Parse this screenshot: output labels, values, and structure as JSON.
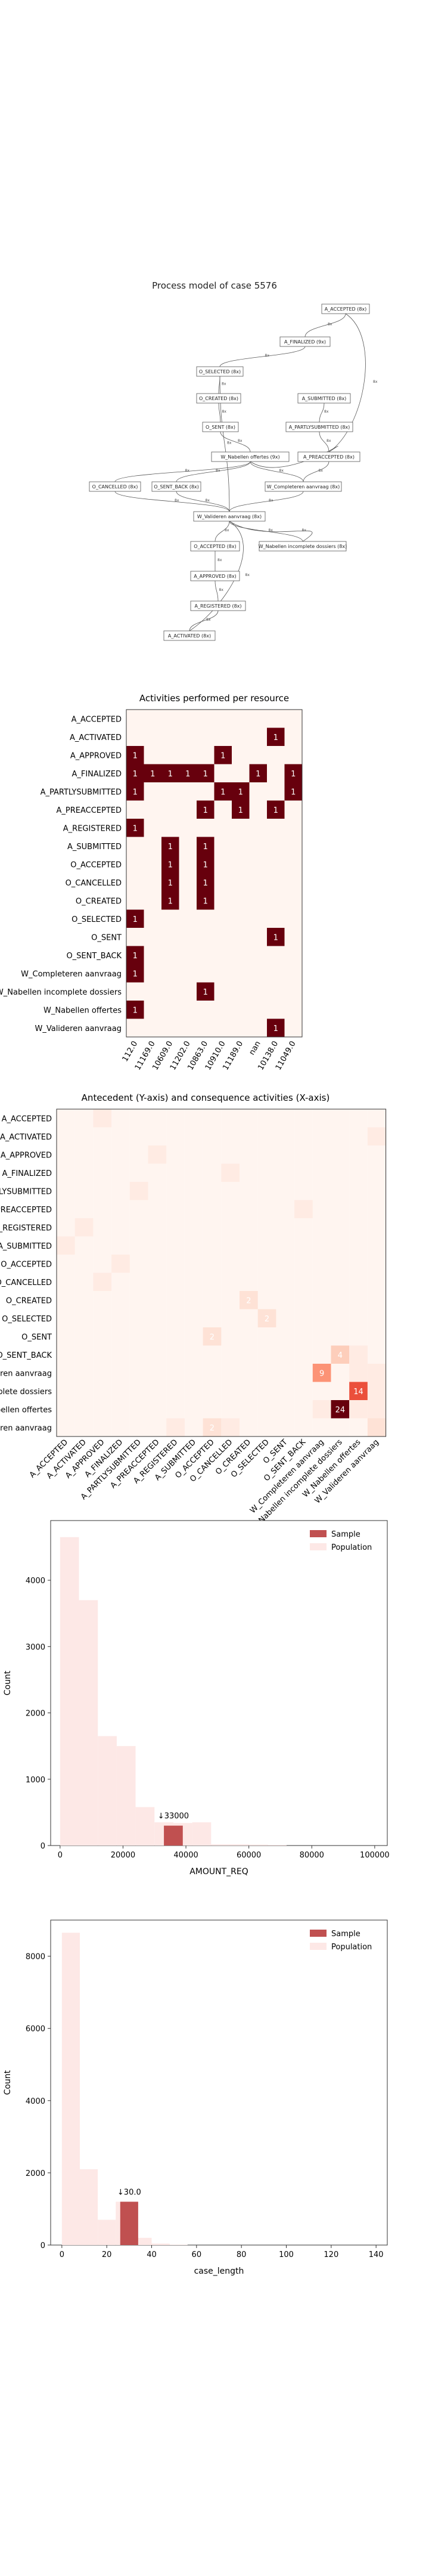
{
  "process_model": {
    "title": "Process model of case 5576",
    "nodes": [
      "A_ACCEPTED (8x)",
      "A_FINALIZED (9x)",
      "O_SELECTED (8x)",
      "O_CREATED (8x)",
      "A_SUBMITTED (8x)",
      "O_SENT (8x)",
      "A_PARTLYSUBMITTED (8x)",
      "W_Nabellen offertes (9x)",
      "A_PREACCEPTED (8x)",
      "O_CANCELLED (8x)",
      "O_SENT_BACK (8x)",
      "W_Completeren aanvraag (8x)",
      "W_Valideren aanvraag (8x)",
      "O_ACCEPTED (8x)",
      "W_Nabellen incomplete dossiers (8x)",
      "A_APPROVED (8x)",
      "A_REGISTERED (8x)",
      "A_ACTIVATED (8x)"
    ],
    "edge_labels": [
      "8x",
      "8x",
      "8x",
      "8x",
      "8x",
      "8x",
      "8x",
      "8x",
      "8x",
      "8x",
      "8x",
      "8x",
      "8x",
      "8x",
      "8x",
      "8x",
      "8x",
      "8x",
      "8x",
      "8x",
      "8x",
      "8x",
      "8x",
      "8x"
    ]
  },
  "chart_data": [
    {
      "type": "heatmap",
      "title": "Activities performed per resource",
      "rows": [
        "A_ACCEPTED",
        "A_ACTIVATED",
        "A_APPROVED",
        "A_FINALIZED",
        "A_PARTLYSUBMITTED",
        "A_PREACCEPTED",
        "A_REGISTERED",
        "A_SUBMITTED",
        "O_ACCEPTED",
        "O_CANCELLED",
        "O_CREATED",
        "O_SELECTED",
        "O_SENT",
        "O_SENT_BACK",
        "W_Completeren aanvraag",
        "W_Nabellen incomplete dossiers",
        "W_Nabellen offertes",
        "W_Valideren aanvraag"
      ],
      "cols": [
        "112.0",
        "11169.0",
        "10609.0",
        "11202.0",
        "10863.0",
        "10910.0",
        "11189.0",
        "nan",
        "10138.0",
        "11049.0"
      ],
      "cells": [
        [
          3,
          4,
          1
        ],
        [
          1,
          8,
          1
        ],
        [
          2,
          0,
          1
        ],
        [
          2,
          5,
          1
        ],
        [
          3,
          0,
          1
        ],
        [
          3,
          1,
          1
        ],
        [
          3,
          2,
          1
        ],
        [
          3,
          3,
          1
        ],
        [
          3,
          4,
          1
        ],
        [
          3,
          7,
          1
        ],
        [
          3,
          9,
          1
        ],
        [
          4,
          0,
          1
        ],
        [
          4,
          6,
          1
        ],
        [
          4,
          5,
          1
        ],
        [
          4,
          9,
          1
        ],
        [
          5,
          4,
          1
        ],
        [
          5,
          6,
          1
        ],
        [
          5,
          8,
          1
        ],
        [
          6,
          0,
          1
        ],
        [
          7,
          2,
          1
        ],
        [
          7,
          4,
          1
        ],
        [
          8,
          2,
          1
        ],
        [
          8,
          4,
          1
        ],
        [
          9,
          2,
          1
        ],
        [
          9,
          4,
          1
        ],
        [
          10,
          2,
          1
        ],
        [
          10,
          4,
          1
        ],
        [
          11,
          0,
          1
        ],
        [
          12,
          8,
          1
        ],
        [
          13,
          0,
          1
        ],
        [
          14,
          0,
          1
        ],
        [
          15,
          4,
          1
        ],
        [
          16,
          0,
          1
        ],
        [
          17,
          8,
          1
        ]
      ]
    },
    {
      "type": "heatmap",
      "title": "Antecedent (Y-axis) and consequence activities (X-axis)",
      "labels": [
        "A_ACCEPTED",
        "A_ACTIVATED",
        "A_APPROVED",
        "A_FINALIZED",
        "A_PARTLYSUBMITTED",
        "A_PREACCEPTED",
        "A_REGISTERED",
        "A_SUBMITTED",
        "O_ACCEPTED",
        "O_CANCELLED",
        "O_CREATED",
        "O_SELECTED",
        "O_SENT",
        "O_SENT_BACK",
        "W_Completeren aanvraag",
        "W_Nabellen incomplete dossiers",
        "W_Nabellen offertes",
        "W_Valideren aanvraag"
      ],
      "cells": [
        [
          0,
          2,
          1
        ],
        [
          1,
          17,
          1
        ],
        [
          2,
          5,
          1
        ],
        [
          3,
          9,
          1
        ],
        [
          4,
          4,
          1
        ],
        [
          5,
          13,
          1
        ],
        [
          6,
          1,
          1
        ],
        [
          7,
          0,
          1
        ],
        [
          8,
          3,
          1
        ],
        [
          9,
          2,
          1
        ],
        [
          10,
          10,
          2
        ],
        [
          11,
          11,
          2
        ],
        [
          12,
          8,
          2
        ],
        [
          13,
          15,
          4
        ],
        [
          14,
          16,
          1
        ],
        [
          15,
          16,
          1
        ],
        [
          16,
          17,
          1
        ],
        [
          14,
          14,
          9
        ],
        [
          15,
          16,
          14
        ],
        [
          16,
          15,
          24
        ],
        [
          16,
          14,
          1
        ],
        [
          16,
          16,
          1
        ],
        [
          17,
          6,
          1
        ],
        [
          17,
          8,
          2
        ],
        [
          17,
          9,
          1
        ],
        [
          13,
          16,
          1
        ],
        [
          14,
          17,
          1
        ],
        [
          15,
          17,
          1
        ],
        [
          17,
          17,
          2
        ]
      ],
      "printed_values": [
        {
          "row": 14,
          "col": 14,
          "label": "9"
        },
        {
          "row": 15,
          "col": 16,
          "label": "14"
        },
        {
          "row": 16,
          "col": 15,
          "label": "24"
        },
        {
          "row": 10,
          "col": 10,
          "label": "2"
        },
        {
          "row": 11,
          "col": 11,
          "label": "2"
        },
        {
          "row": 12,
          "col": 8,
          "label": "2"
        },
        {
          "row": 13,
          "col": 15,
          "label": "4"
        },
        {
          "row": 17,
          "col": 8,
          "label": "2"
        }
      ]
    },
    {
      "type": "bar",
      "xlabel": "AMOUNT_REQ",
      "ylabel": "Count",
      "xlim": [
        -3000,
        104000
      ],
      "ylim": [
        0,
        4900
      ],
      "xticks": [
        "0",
        "20000",
        "40000",
        "60000",
        "80000",
        "100000"
      ],
      "yticks": [
        "0",
        "1000",
        "2000",
        "3000",
        "4000"
      ],
      "legend": [
        "Sample",
        "Population"
      ],
      "legend_position": "top-right",
      "bin_width": 6000,
      "series": [
        {
          "name": "Population",
          "color": "#fde8e6",
          "x": [
            0,
            6000,
            12000,
            18000,
            24000,
            30000,
            36000,
            42000,
            48000,
            54000,
            60000,
            66000
          ],
          "values": [
            4650,
            3700,
            1650,
            1500,
            580,
            350,
            340,
            350,
            20,
            20,
            15,
            10
          ]
        },
        {
          "name": "Sample",
          "color": "#c05050",
          "x": [
            33000
          ],
          "values": [
            300
          ]
        }
      ],
      "annotation": "↓33000"
    },
    {
      "type": "bar",
      "xlabel": "case_length",
      "ylabel": "Count",
      "xlim": [
        -5,
        145
      ],
      "ylim": [
        0,
        9000
      ],
      "xticks": [
        "0",
        "20",
        "40",
        "60",
        "80",
        "100",
        "120",
        "140"
      ],
      "yticks": [
        "0",
        "2000",
        "4000",
        "6000",
        "8000"
      ],
      "legend": [
        "Sample",
        "Population"
      ],
      "legend_position": "top-right",
      "bin_width": 8,
      "series": [
        {
          "name": "Population",
          "color": "#fde8e6",
          "x": [
            0,
            8,
            16,
            24,
            32,
            40,
            48
          ],
          "values": [
            8650,
            2100,
            700,
            1200,
            200,
            40,
            10
          ]
        },
        {
          "name": "Sample",
          "color": "#c05050",
          "x": [
            26
          ],
          "values": [
            1200
          ]
        }
      ],
      "annotation": "↓30.0"
    }
  ]
}
